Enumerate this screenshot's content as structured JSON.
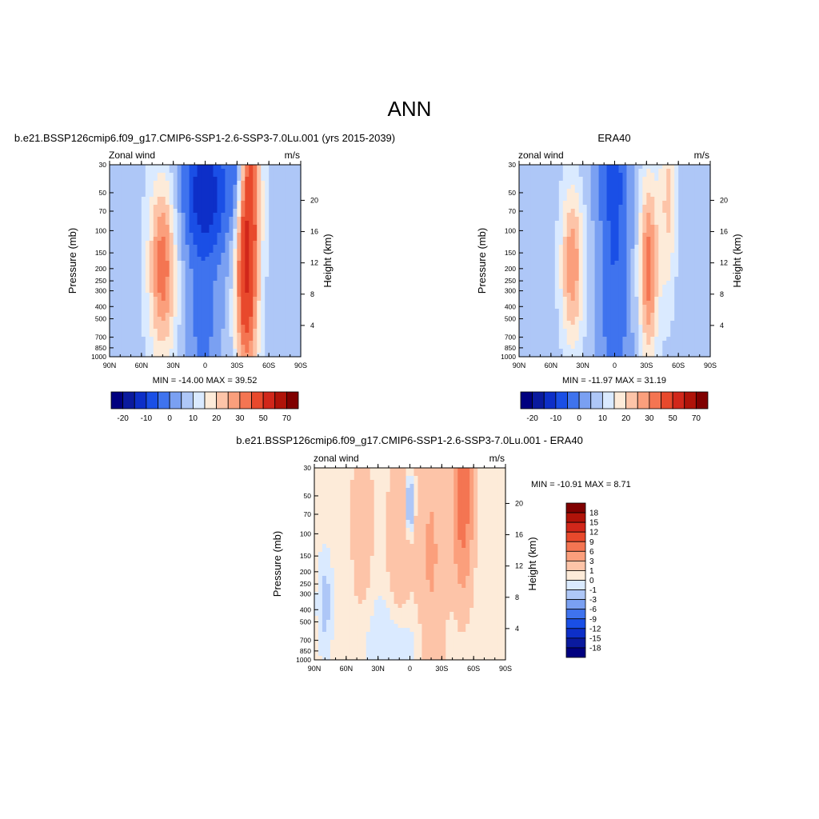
{
  "title": "ANN",
  "chart_data": [
    {
      "type": "heatmap",
      "title": "b.e21.BSSP126cmip6.f09_g17.CMIP6-SSP1-2.6-SSP3-7.0Lu.001 (yrs 2015-2039)",
      "left_label": "Zonal wind",
      "right_label": "m/s",
      "xlabel": "",
      "ylabel": "Pressure (mb)",
      "y2label": "Height (km)",
      "xticks": [
        "90N",
        "60N",
        "30N",
        "0",
        "30S",
        "60S",
        "90S"
      ],
      "yticks": [
        30,
        50,
        70,
        100,
        150,
        200,
        250,
        300,
        400,
        500,
        700,
        850,
        1000
      ],
      "y2ticks": [
        4,
        8,
        12,
        16,
        20
      ],
      "stats": "MIN = -14.00  MAX =  39.52",
      "levels": [
        -25,
        -20,
        -15,
        -10,
        -5,
        0,
        5,
        10,
        15,
        20,
        25,
        30,
        40,
        50,
        60,
        70
      ],
      "colorbar_labels": [
        "-20",
        "-10",
        "0",
        "10",
        "20",
        "30",
        "50",
        "70"
      ],
      "features": [
        {
          "lat": 40,
          "p": 190,
          "w_lat": 13,
          "w_z": 1.6,
          "amp": 26
        },
        {
          "lat": -37,
          "p": 175,
          "w_lat": 9,
          "w_z": 2.2,
          "amp": 32
        },
        {
          "lat": -45,
          "p": 60,
          "w_lat": 9,
          "w_z": 2.8,
          "amp": 20
        },
        {
          "lat": 0,
          "p": 50,
          "w_lat": 24,
          "w_z": 1.4,
          "amp": -22
        },
        {
          "lat": -30,
          "p": 40,
          "w_lat": 8,
          "w_z": 1.0,
          "amp": -12
        },
        {
          "lat": 2,
          "p": 700,
          "w_lat": 17,
          "w_z": 1.3,
          "amp": -9
        }
      ],
      "background": 3
    },
    {
      "type": "heatmap",
      "title": "ERA40",
      "left_label": "zonal wind",
      "right_label": "m/s",
      "xlabel": "",
      "ylabel": "Pressure (mb)",
      "y2label": "Height (km)",
      "xticks": [
        "90N",
        "60N",
        "30N",
        "0",
        "30S",
        "60S",
        "90S"
      ],
      "yticks": [
        30,
        50,
        70,
        100,
        150,
        200,
        250,
        300,
        400,
        500,
        700,
        850,
        1000
      ],
      "y2ticks": [
        4,
        8,
        12,
        16,
        20
      ],
      "stats": "MIN = -11.97  MAX =  31.19",
      "levels": [
        -25,
        -20,
        -15,
        -10,
        -5,
        0,
        5,
        10,
        15,
        20,
        25,
        30,
        40,
        50,
        60,
        70
      ],
      "colorbar_labels": [
        "-20",
        "-10",
        "0",
        "10",
        "20",
        "30",
        "50",
        "70"
      ],
      "features": [
        {
          "lat": 40,
          "p": 190,
          "w_lat": 11,
          "w_z": 1.5,
          "amp": 22
        },
        {
          "lat": -32,
          "p": 200,
          "w_lat": 9,
          "w_z": 1.7,
          "amp": 26
        },
        {
          "lat": -50,
          "p": 55,
          "w_lat": 8,
          "w_z": 2.0,
          "amp": 14
        },
        {
          "lat": 0,
          "p": 200,
          "w_lat": 15,
          "w_z": 3.2,
          "amp": -12
        },
        {
          "lat": 5,
          "p": 35,
          "w_lat": 18,
          "w_z": 0.9,
          "amp": -6
        }
      ],
      "background": 2
    },
    {
      "type": "heatmap",
      "title": "b.e21.BSSP126cmip6.f09_g17.CMIP6-SSP1-2.6-SSP3-7.0Lu.001 - ERA40",
      "left_label": "zonal wind",
      "right_label": "m/s",
      "xlabel": "",
      "ylabel": "Pressure (mb)",
      "y2label": "Height (km)",
      "xticks": [
        "90N",
        "60N",
        "30N",
        "0",
        "30S",
        "60S",
        "90S"
      ],
      "yticks": [
        30,
        50,
        70,
        100,
        150,
        200,
        250,
        300,
        400,
        500,
        700,
        850,
        1000
      ],
      "y2ticks": [
        4,
        8,
        12,
        16,
        20
      ],
      "stats": "MIN = -10.91  MAX =   8.71",
      "levels": [
        -18,
        -15,
        -12,
        -9,
        -6,
        -3,
        -1,
        0,
        1,
        3,
        6,
        9,
        12,
        15,
        18
      ],
      "colorbar_labels": [
        "18",
        "15",
        "12",
        "9",
        "6",
        "3",
        "1",
        "0",
        "-1",
        "-3",
        "-6",
        "-9",
        "-12",
        "-15",
        "-18"
      ],
      "features": [
        {
          "lat": -50,
          "p": 50,
          "w_lat": 9,
          "w_z": 1.6,
          "amp": 8
        },
        {
          "lat": -20,
          "p": 150,
          "w_lat": 14,
          "w_z": 2.5,
          "amp": 3
        },
        {
          "lat": 10,
          "p": 120,
          "w_lat": 11,
          "w_z": 1.6,
          "amp": 2.5
        },
        {
          "lat": 45,
          "p": 80,
          "w_lat": 10,
          "w_z": 1.8,
          "amp": 2
        },
        {
          "lat": 0,
          "p": 60,
          "w_lat": 4,
          "w_z": 0.5,
          "amp": -5
        },
        {
          "lat": 80,
          "p": 350,
          "w_lat": 6,
          "w_z": 0.8,
          "amp": -2
        },
        {
          "lat": 15,
          "p": 750,
          "w_lat": 30,
          "w_z": 0.9,
          "amp": -1.5
        }
      ],
      "background": 0.3
    }
  ]
}
